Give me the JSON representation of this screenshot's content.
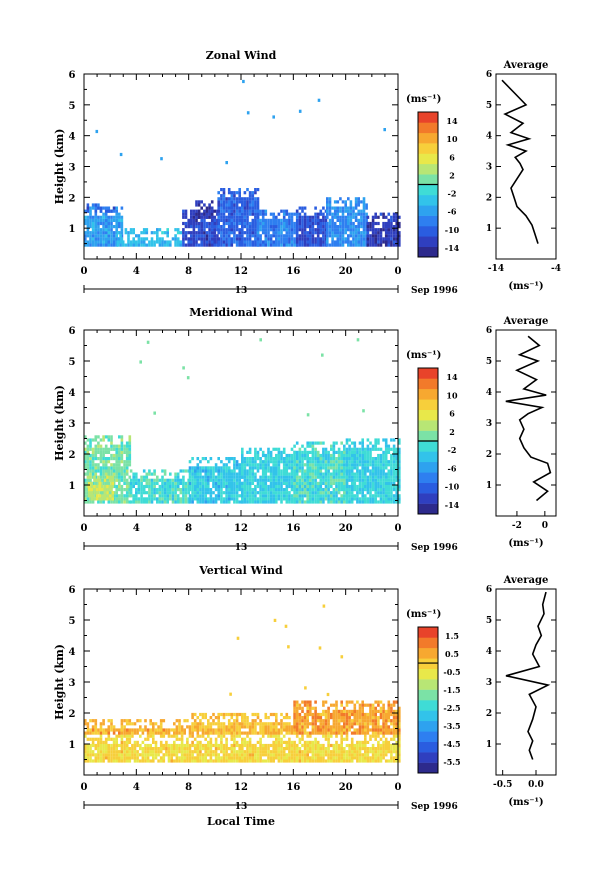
{
  "chart_data": [
    {
      "type": "heatmap",
      "title": "Zonal Wind",
      "ylabel": "Height (km)",
      "xlabel": "",
      "xlim": [
        0,
        24
      ],
      "ylim": [
        0,
        6
      ],
      "x_ticks": [
        "0",
        "4",
        "8",
        "12",
        "16",
        "20",
        "0"
      ],
      "y_ticks": [
        "1",
        "2",
        "3",
        "4",
        "5",
        "6"
      ],
      "date_label": "13",
      "month_label": "Sep 1996",
      "colorbar": {
        "unit": "(ms⁻¹)",
        "min": -16,
        "max": 16,
        "ticks": [
          "14",
          "10",
          "6",
          "2",
          "-2",
          "-6",
          "-10",
          "-14"
        ]
      },
      "field": {
        "base": 0.0,
        "blocks": [
          {
            "t0": 0.0,
            "t1": 3.0,
            "h0": 0.4,
            "h1": 1.7,
            "v": -6
          },
          {
            "t0": 0.0,
            "t1": 2.4,
            "h0": 1.5,
            "h1": 1.8,
            "v": -10
          },
          {
            "t0": 2.5,
            "t1": 7.5,
            "h0": 0.4,
            "h1": 0.9,
            "v": -4
          },
          {
            "t0": 7.5,
            "t1": 10.2,
            "h0": 0.4,
            "h1": 1.6,
            "v": -12
          },
          {
            "t0": 8.5,
            "t1": 9.8,
            "h0": 1.3,
            "h1": 1.9,
            "v": -14
          },
          {
            "t0": 10.2,
            "t1": 13.2,
            "h0": 0.4,
            "h1": 2.3,
            "v": -10
          },
          {
            "t0": 13.2,
            "t1": 16.2,
            "h0": 0.4,
            "h1": 1.6,
            "v": -8
          },
          {
            "t0": 16.2,
            "t1": 18.5,
            "h0": 0.4,
            "h1": 1.7,
            "v": -11
          },
          {
            "t0": 18.5,
            "t1": 21.6,
            "h0": 0.4,
            "h1": 2.0,
            "v": -7
          },
          {
            "t0": 21.6,
            "t1": 24.0,
            "h0": 0.4,
            "h1": 1.5,
            "v": -13
          }
        ]
      },
      "profile": {
        "title": "Average",
        "xlim": [
          -14,
          -4
        ],
        "x_ticks": [
          "-14",
          "-4"
        ],
        "xlabel": "(ms⁻¹)",
        "x": [
          -7.0,
          -7.5,
          -8.0,
          -9.0,
          -10.5,
          -11.0,
          -11.5,
          -10.5,
          -9.5,
          -10.0,
          -10.8,
          -9.0,
          -12.0,
          -8.5,
          -11.5,
          -9.5,
          -12.5,
          -9.0,
          -11.0,
          -13.0
        ],
        "y": [
          0.5,
          0.8,
          1.1,
          1.4,
          1.7,
          2.0,
          2.3,
          2.6,
          2.9,
          3.1,
          3.3,
          3.5,
          3.7,
          3.9,
          4.1,
          4.4,
          4.7,
          5.0,
          5.4,
          5.8
        ]
      }
    },
    {
      "type": "heatmap",
      "title": "Meridional Wind",
      "ylabel": "Height (km)",
      "xlabel": "",
      "xlim": [
        0,
        24
      ],
      "ylim": [
        0,
        6
      ],
      "x_ticks": [
        "0",
        "4",
        "8",
        "12",
        "16",
        "20",
        "0"
      ],
      "y_ticks": [
        "1",
        "2",
        "3",
        "4",
        "5",
        "6"
      ],
      "date_label": "13",
      "month_label": "Sep 1996",
      "colorbar": {
        "unit": "(ms⁻¹)",
        "min": -16,
        "max": 16,
        "ticks": [
          "14",
          "10",
          "6",
          "2",
          "-2",
          "-6",
          "-10",
          "-14"
        ]
      },
      "field": {
        "base": 0.0,
        "blocks": [
          {
            "t0": 0.0,
            "t1": 3.5,
            "h0": 0.4,
            "h1": 2.6,
            "v": 1
          },
          {
            "t0": 0.3,
            "t1": 2.2,
            "h0": 0.5,
            "h1": 1.3,
            "v": 4
          },
          {
            "t0": 3.5,
            "t1": 8.0,
            "h0": 0.4,
            "h1": 1.5,
            "v": -1
          },
          {
            "t0": 8.0,
            "t1": 12.0,
            "h0": 0.4,
            "h1": 1.9,
            "v": -3
          },
          {
            "t0": 12.0,
            "t1": 16.0,
            "h0": 0.4,
            "h1": 2.2,
            "v": -2
          },
          {
            "t0": 16.0,
            "t1": 20.0,
            "h0": 0.4,
            "h1": 2.4,
            "v": -1
          },
          {
            "t0": 20.0,
            "t1": 24.0,
            "h0": 0.4,
            "h1": 2.5,
            "v": -2
          }
        ]
      },
      "profile": {
        "title": "Average",
        "xlim": [
          -3.5,
          0.8
        ],
        "x_ticks": [
          "-2",
          "0"
        ],
        "xlabel": "(ms⁻¹)",
        "x": [
          -0.6,
          0.2,
          -0.8,
          0.4,
          0.2,
          -1.0,
          -1.5,
          -1.8,
          -1.5,
          -1.8,
          -1.2,
          -0.2,
          -2.8,
          0.1,
          -1.5,
          -0.6,
          -2.0,
          -0.5,
          -1.8,
          -0.4,
          -1.2
        ],
        "y": [
          0.5,
          0.8,
          1.1,
          1.4,
          1.7,
          1.9,
          2.2,
          2.5,
          2.8,
          3.1,
          3.3,
          3.5,
          3.7,
          3.9,
          4.1,
          4.4,
          4.7,
          5.0,
          5.2,
          5.5,
          5.8
        ]
      }
    },
    {
      "type": "heatmap",
      "title": "Vertical Wind",
      "ylabel": "Height (km)",
      "xlabel": "Local Time",
      "xlim": [
        0,
        24
      ],
      "ylim": [
        0,
        6
      ],
      "x_ticks": [
        "0",
        "4",
        "8",
        "12",
        "16",
        "20",
        "0"
      ],
      "y_ticks": [
        "1",
        "2",
        "3",
        "4",
        "5",
        "6"
      ],
      "date_label": "13",
      "month_label": "Sep 1996",
      "colorbar": {
        "unit": "(ms⁻¹)",
        "min": -6.1,
        "max": 2.0,
        "ticks": [
          "1.5",
          "0.5",
          "-0.5",
          "-1.5",
          "-2.5",
          "-3.5",
          "-4.5",
          "-5.5"
        ]
      },
      "field": {
        "base": 0.0,
        "blocks": [
          {
            "t0": 0.0,
            "t1": 24.0,
            "h0": 0.4,
            "h1": 1.3,
            "v": -0.2
          },
          {
            "t0": 0.0,
            "t1": 8.0,
            "h0": 1.3,
            "h1": 1.8,
            "v": 0.4
          },
          {
            "t0": 8.0,
            "t1": 16.0,
            "h0": 1.3,
            "h1": 2.0,
            "v": 0.2
          },
          {
            "t0": 16.0,
            "t1": 24.0,
            "h0": 1.3,
            "h1": 2.4,
            "v": 0.6
          }
        ]
      },
      "profile": {
        "title": "Average",
        "xlim": [
          -0.6,
          0.3
        ],
        "x_ticks": [
          "-0.5",
          "0.0"
        ],
        "xlabel": "(ms⁻¹)",
        "x": [
          -0.05,
          -0.1,
          -0.05,
          -0.12,
          -0.05,
          0.0,
          -0.1,
          0.18,
          -0.45,
          0.05,
          -0.05,
          0.0,
          0.08,
          0.03,
          0.12,
          0.1,
          0.15
        ],
        "y": [
          0.5,
          0.8,
          1.1,
          1.4,
          1.8,
          2.2,
          2.6,
          2.9,
          3.2,
          3.5,
          3.9,
          4.2,
          4.5,
          4.8,
          5.2,
          5.5,
          5.9
        ]
      }
    }
  ]
}
